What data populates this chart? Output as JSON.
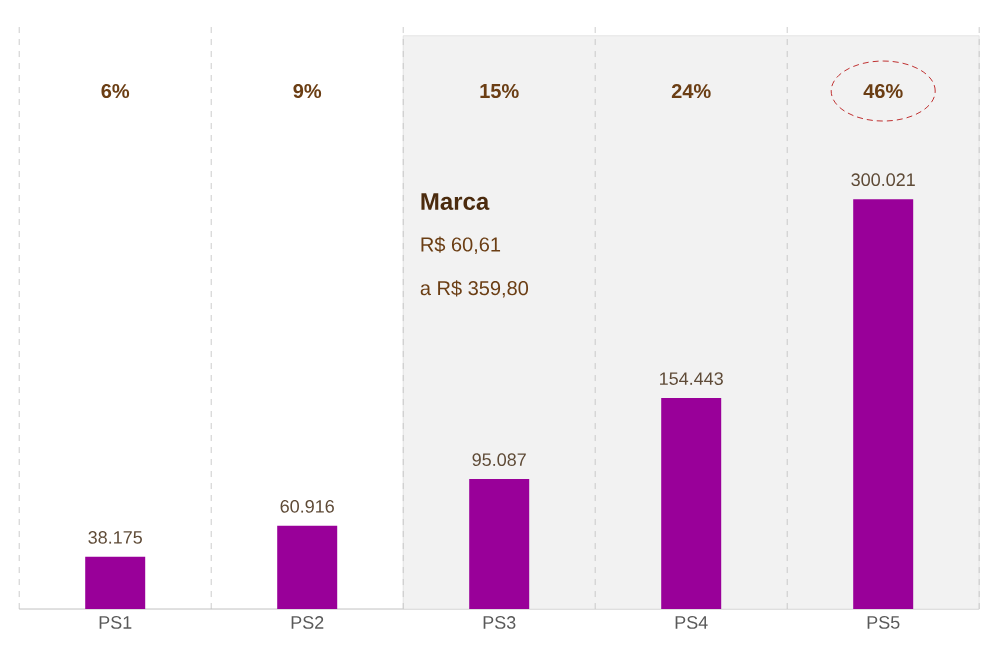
{
  "chart_data": {
    "type": "bar",
    "categories": [
      "PS1",
      "PS2",
      "PS3",
      "PS4",
      "PS5"
    ],
    "values": [
      38175,
      60916,
      95087,
      154443,
      300021
    ],
    "value_labels": [
      "38.175",
      "60.916",
      "95.087",
      "154.443",
      "300.021"
    ],
    "color": "#990099",
    "bands": [
      {
        "axis": "x",
        "from": "PS3",
        "to": "PS5",
        "color": "#f2f2f2"
      }
    ],
    "annotations": [
      "6%",
      "9%",
      "15%",
      "24%",
      "46%",
      "Marca",
      "R$ 60,61",
      "a R$ 359,80"
    ]
  }
}
